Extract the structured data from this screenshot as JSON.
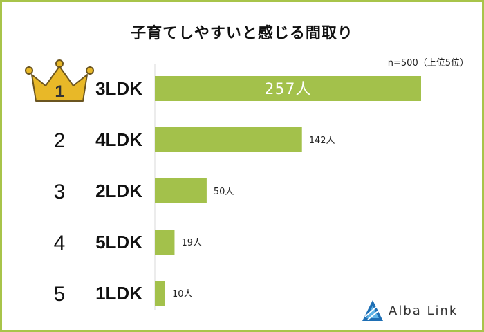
{
  "title": "子育てしやすいと感じる間取り",
  "note": "n=500（上位5位）",
  "brand": {
    "name": "Alba Link"
  },
  "colors": {
    "bar": "#a3c14b",
    "border": "#a8c44a",
    "crown": "#e8b828",
    "crown_outline": "#6b5520"
  },
  "chart_data": {
    "type": "bar",
    "orientation": "horizontal",
    "title": "子育てしやすいと感じる間取り",
    "categories": [
      "3LDK",
      "4LDK",
      "2LDK",
      "5LDK",
      "1LDK"
    ],
    "ranks": [
      "1",
      "2",
      "3",
      "4",
      "5"
    ],
    "values": [
      257,
      142,
      50,
      19,
      10
    ],
    "value_labels": [
      "257人",
      "142人",
      "50人",
      "19人",
      "10人"
    ],
    "unit": "人",
    "xlim": [
      0,
      257
    ],
    "grid": false,
    "legend": "none"
  }
}
